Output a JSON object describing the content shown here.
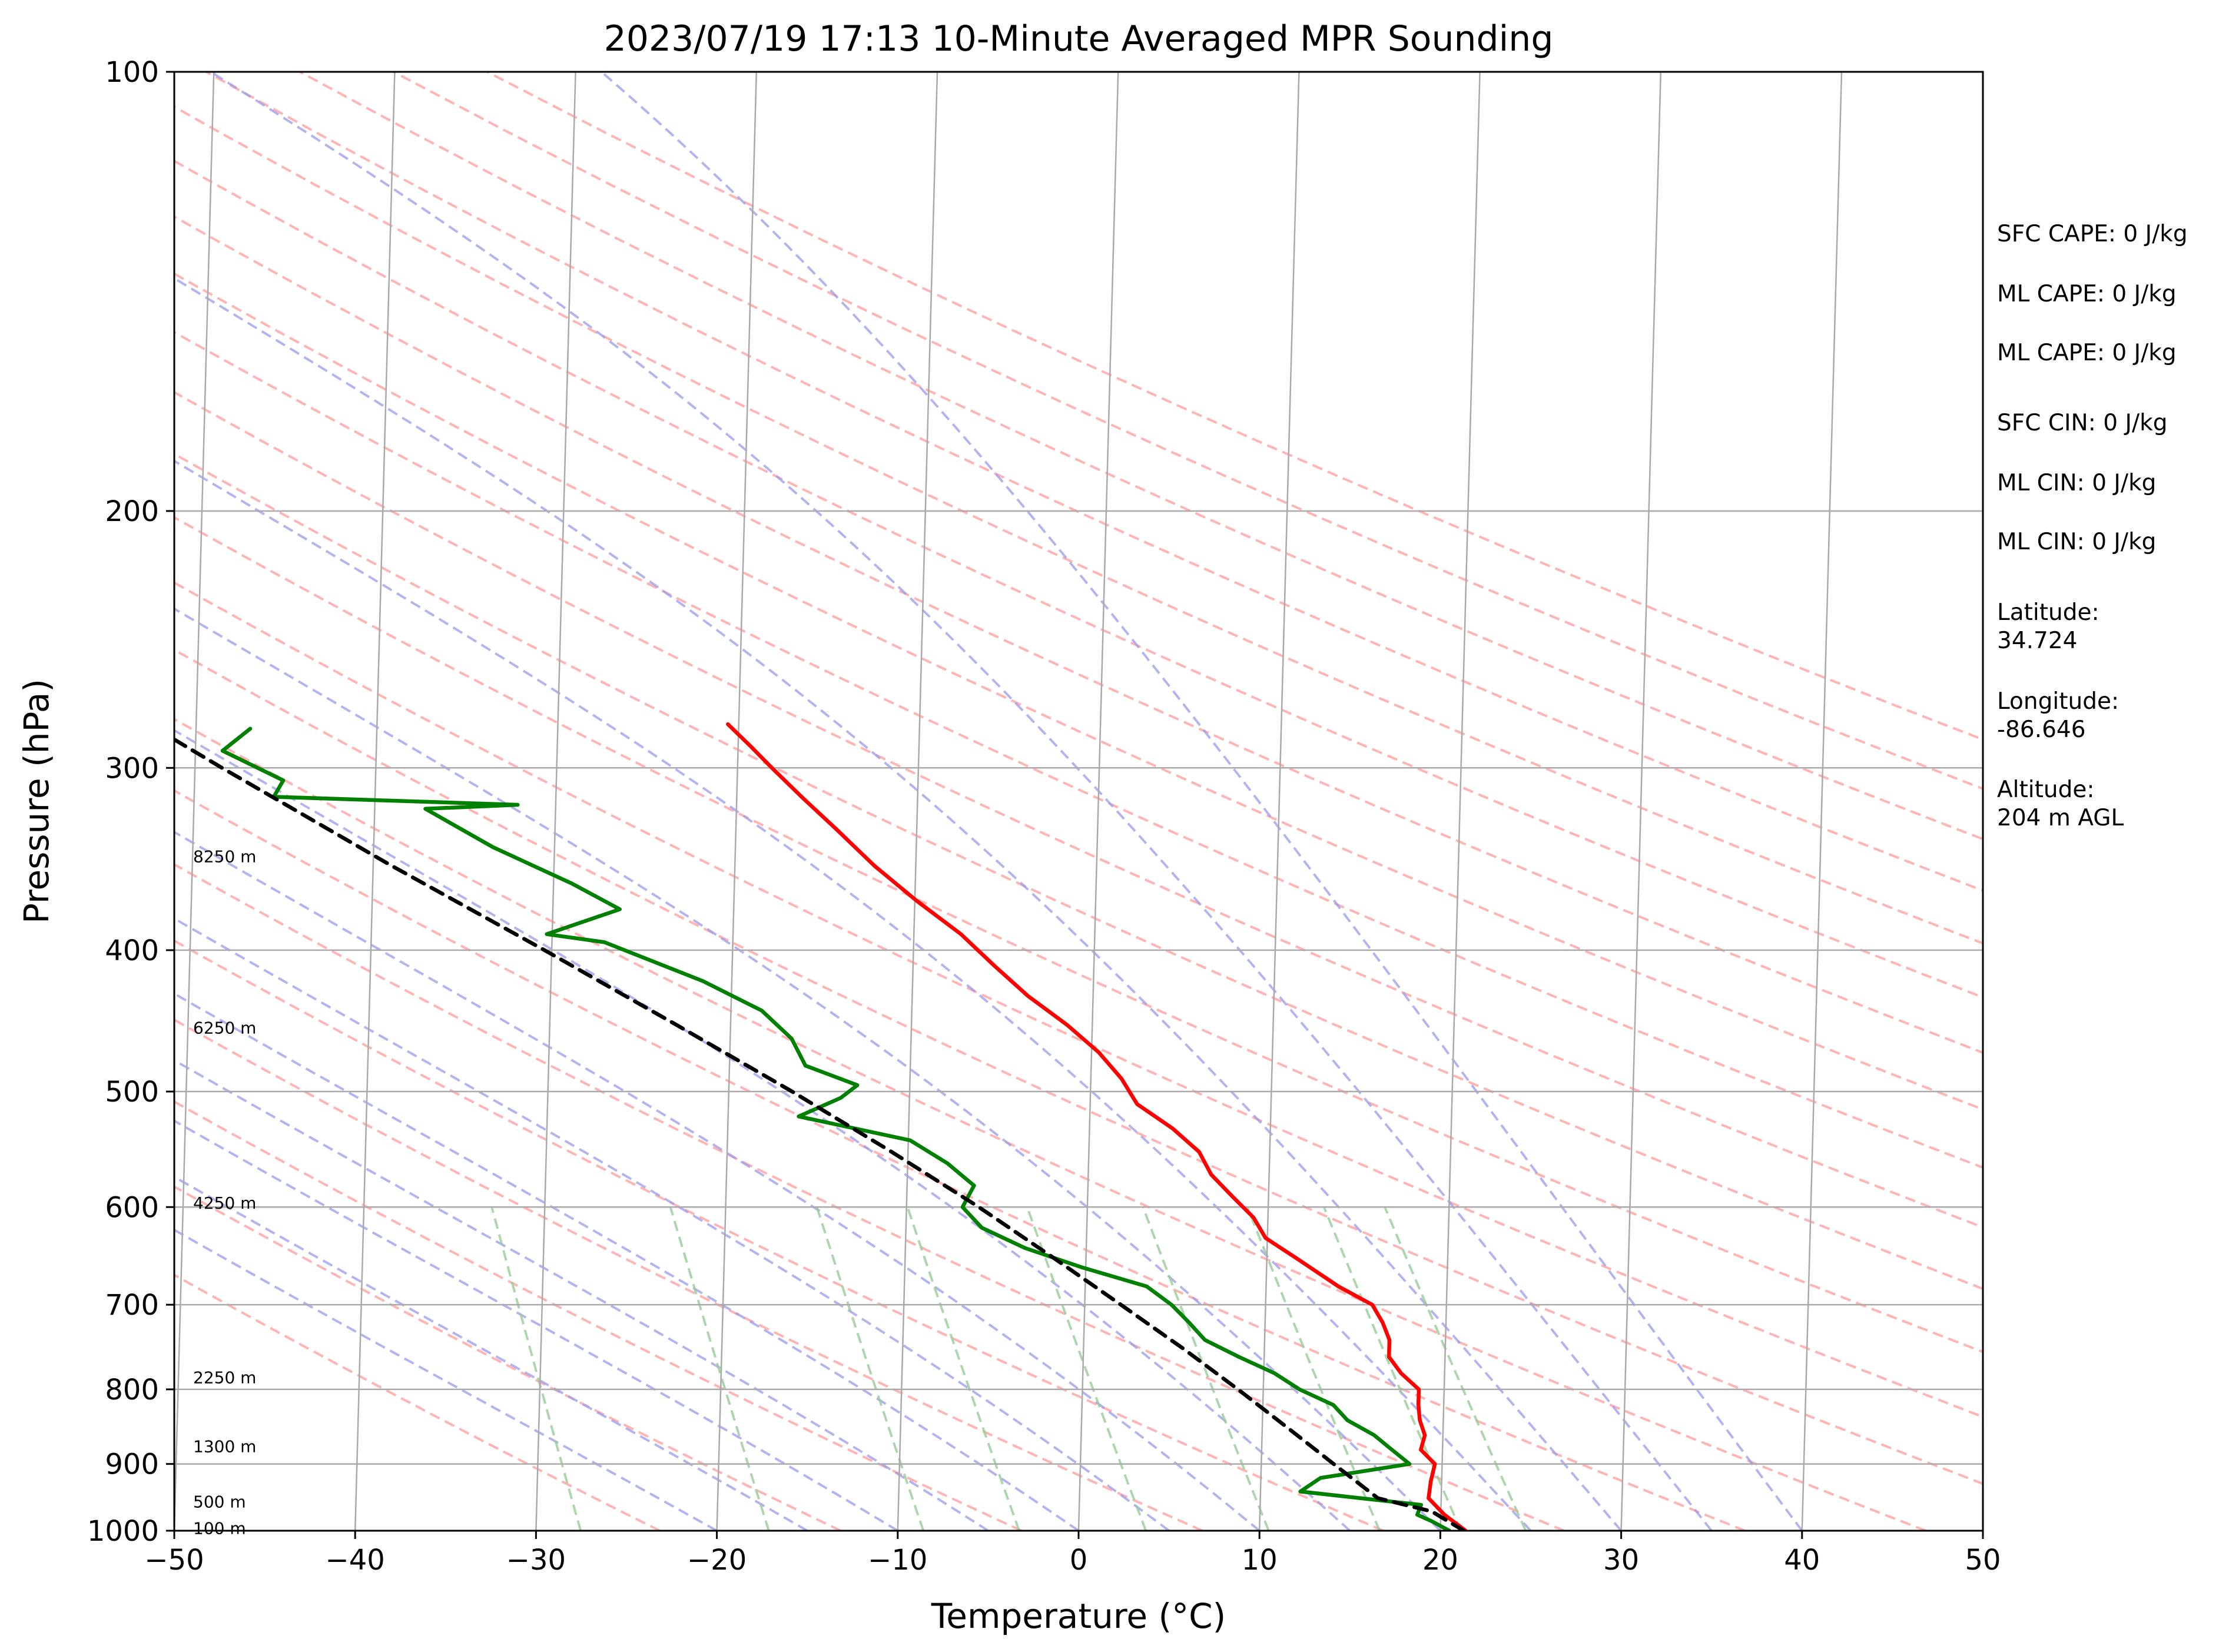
{
  "chart_data": {
    "type": "line",
    "title": "2023/07/19 17:13 10-Minute Averaged MPR Sounding",
    "xlabel": "Temperature (°C)",
    "ylabel": "Pressure (hPa)",
    "xlim": [
      -50,
      50
    ],
    "ylim": [
      1000,
      100
    ],
    "y_scale": "log",
    "skew": true,
    "grid": true,
    "x_ticks": [
      -50,
      -40,
      -30,
      -20,
      -10,
      0,
      10,
      20,
      30,
      40,
      50
    ],
    "x_tick_labels": [
      "−50",
      "−40",
      "−30",
      "−20",
      "−10",
      "0",
      "10",
      "20",
      "30",
      "40",
      "50"
    ],
    "y_ticks": [
      1000,
      900,
      800,
      700,
      600,
      500,
      400,
      300,
      200,
      100
    ],
    "y_tick_labels": [
      "1000",
      "900",
      "800",
      "700",
      "600",
      "500",
      "400",
      "300",
      "200",
      "100"
    ],
    "series": [
      {
        "key": "temperature",
        "color": "#ff0000",
        "points": [
          [
            1000,
            21.4
          ],
          [
            975,
            20.2
          ],
          [
            950,
            19.3
          ],
          [
            925,
            19.4
          ],
          [
            900,
            19.6
          ],
          [
            880,
            18.8
          ],
          [
            860,
            19.0
          ],
          [
            840,
            18.7
          ],
          [
            820,
            18.6
          ],
          [
            800,
            18.6
          ],
          [
            780,
            17.6
          ],
          [
            760,
            16.9
          ],
          [
            740,
            16.9
          ],
          [
            720,
            16.5
          ],
          [
            700,
            15.9
          ],
          [
            680,
            14.0
          ],
          [
            650,
            11.6
          ],
          [
            630,
            9.9
          ],
          [
            610,
            9.2
          ],
          [
            590,
            8.0
          ],
          [
            570,
            6.8
          ],
          [
            550,
            6.1
          ],
          [
            530,
            4.6
          ],
          [
            510,
            2.6
          ],
          [
            490,
            1.7
          ],
          [
            470,
            0.4
          ],
          [
            450,
            -1.4
          ],
          [
            430,
            -3.6
          ],
          [
            410,
            -5.5
          ],
          [
            390,
            -7.4
          ],
          [
            370,
            -9.9
          ],
          [
            350,
            -12.3
          ],
          [
            330,
            -14.5
          ],
          [
            315,
            -16.3
          ],
          [
            300,
            -18.1
          ],
          [
            290,
            -19.3
          ],
          [
            280,
            -20.6
          ]
        ]
      },
      {
        "key": "dewpoint",
        "color": "#008000",
        "points": [
          [
            1000,
            20.5
          ],
          [
            985,
            19.5
          ],
          [
            975,
            18.7
          ],
          [
            960,
            18.9
          ],
          [
            940,
            12.2
          ],
          [
            920,
            13.3
          ],
          [
            900,
            18.2
          ],
          [
            880,
            17.2
          ],
          [
            860,
            16.2
          ],
          [
            840,
            14.7
          ],
          [
            820,
            13.9
          ],
          [
            800,
            12.0
          ],
          [
            780,
            10.6
          ],
          [
            760,
            8.6
          ],
          [
            740,
            6.7
          ],
          [
            720,
            5.8
          ],
          [
            700,
            4.8
          ],
          [
            680,
            3.4
          ],
          [
            660,
            -0.2
          ],
          [
            640,
            -3.4
          ],
          [
            620,
            -5.8
          ],
          [
            600,
            -6.9
          ],
          [
            580,
            -6.3
          ],
          [
            560,
            -7.8
          ],
          [
            540,
            -9.9
          ],
          [
            520,
            -16.1
          ],
          [
            505,
            -13.8
          ],
          [
            495,
            -12.9
          ],
          [
            480,
            -15.8
          ],
          [
            460,
            -16.6
          ],
          [
            440,
            -18.3
          ],
          [
            420,
            -21.6
          ],
          [
            395,
            -27.1
          ],
          [
            390,
            -30.3
          ],
          [
            375,
            -26.3
          ],
          [
            360,
            -29.0
          ],
          [
            340,
            -33.4
          ],
          [
            320,
            -37.2
          ],
          [
            318,
            -32.1
          ],
          [
            314,
            -45.6
          ],
          [
            306,
            -45.1
          ],
          [
            292,
            -48.5
          ],
          [
            282,
            -47.0
          ]
        ]
      },
      {
        "key": "parcel",
        "color": "#000000",
        "style": "dashed",
        "points": [
          [
            1000,
            21.3
          ],
          [
            970,
            19.5
          ],
          [
            950,
            16.5
          ],
          [
            900,
            14.0
          ],
          [
            850,
            11.4
          ],
          [
            800,
            8.6
          ],
          [
            750,
            5.5
          ],
          [
            700,
            2.0
          ],
          [
            650,
            -1.8
          ],
          [
            600,
            -6.0
          ],
          [
            550,
            -10.9
          ],
          [
            500,
            -16.5
          ],
          [
            450,
            -23.0
          ],
          [
            400,
            -30.4
          ],
          [
            350,
            -39.0
          ],
          [
            300,
            -48.5
          ],
          [
            283,
            -52.0
          ]
        ]
      }
    ],
    "reference_lines": {
      "isotherms_color": "#aaaaaa",
      "dry_adiabats_color": "#ff9999",
      "moist_adiabats_color": "#9999ee",
      "mixing_ratio_color": "#99cc99"
    },
    "height_labels": [
      {
        "pressure": 345,
        "text": "8250 m"
      },
      {
        "pressure": 452,
        "text": "6250 m"
      },
      {
        "pressure": 596,
        "text": "4250 m"
      },
      {
        "pressure": 785,
        "text": "2250 m"
      },
      {
        "pressure": 875,
        "text": "1300 m"
      },
      {
        "pressure": 955,
        "text": "500 m"
      },
      {
        "pressure": 996,
        "text": "100 m"
      }
    ],
    "annotations": [
      {
        "text": "SFC CAPE: 0 J/kg"
      },
      {
        "text": "ML CAPE: 0 J/kg"
      },
      {
        "text": "ML CAPE: 0 J/kg"
      },
      {
        "text": "SFC CIN: 0 J/kg"
      },
      {
        "text": "ML CIN: 0 J/kg"
      },
      {
        "text": "ML CIN: 0 J/kg"
      },
      {
        "text": "Latitude:\n34.724"
      },
      {
        "text": "Longitude:\n-86.646"
      },
      {
        "text": "Altitude:\n204 m AGL"
      }
    ]
  }
}
